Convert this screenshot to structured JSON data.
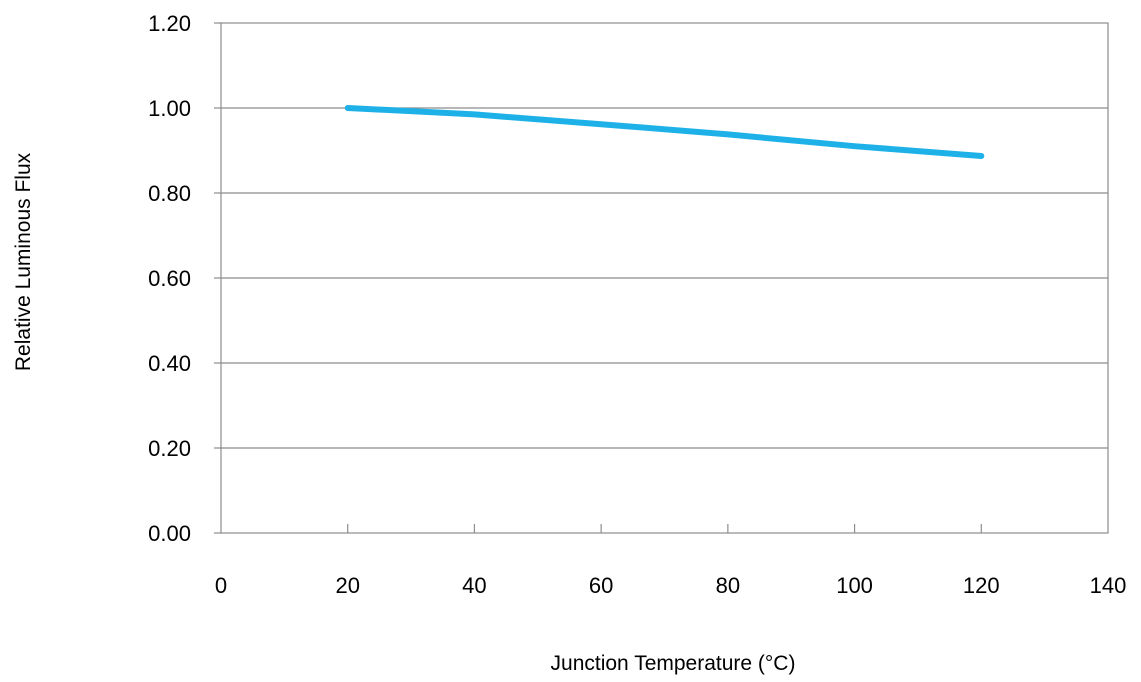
{
  "chart_data": {
    "type": "line",
    "title": "",
    "xlabel": "Junction Temperature (°C)",
    "ylabel": "Relative Luminous Flux",
    "xlim": [
      0,
      140
    ],
    "ylim": [
      0,
      1.2
    ],
    "x_ticks": [
      "0",
      "20",
      "40",
      "60",
      "80",
      "100",
      "120",
      "140"
    ],
    "y_ticks": [
      "0.00",
      "0.20",
      "0.40",
      "0.60",
      "0.80",
      "1.00",
      "1.20"
    ],
    "grid": "horizontal",
    "legend": "none",
    "series": [
      {
        "color": "#1EB1E8",
        "x": [
          20,
          40,
          60,
          80,
          100,
          120
        ],
        "y": [
          1.0,
          0.985,
          0.962,
          0.938,
          0.91,
          0.887
        ]
      }
    ]
  }
}
